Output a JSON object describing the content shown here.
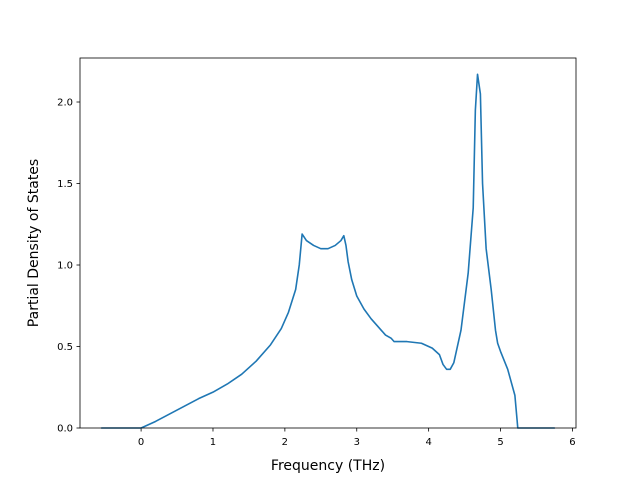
{
  "chart_data": {
    "type": "line",
    "title": "",
    "xlabel": "Frequency (THz)",
    "ylabel": "Partial Density of States",
    "xlim": [
      -0.85,
      6.05
    ],
    "ylim": [
      0.0,
      2.27
    ],
    "x_ticks": [
      0,
      1,
      2,
      3,
      4,
      5,
      6
    ],
    "x_tick_labels": [
      "0",
      "1",
      "2",
      "3",
      "4",
      "5",
      "6"
    ],
    "y_ticks": [
      0.0,
      0.5,
      1.0,
      1.5,
      2.0
    ],
    "y_tick_labels": [
      "0.0",
      "0.5",
      "1.0",
      "1.5",
      "2.0"
    ],
    "grid": false,
    "color": "#1f77b4",
    "series": [
      {
        "x": [
          -0.55,
          0.0,
          0.05,
          0.2,
          0.5,
          0.8,
          1.0,
          1.2,
          1.4,
          1.6,
          1.8,
          1.95,
          2.05,
          2.15,
          2.2,
          2.24,
          2.3,
          2.4,
          2.5,
          2.6,
          2.7,
          2.78,
          2.82,
          2.85,
          2.88,
          2.93,
          3.0,
          3.1,
          3.2,
          3.3,
          3.4,
          3.48,
          3.52,
          3.7,
          3.9,
          4.05,
          4.15,
          4.2,
          4.25,
          4.3,
          4.35,
          4.45,
          4.55,
          4.62,
          4.65,
          4.68,
          4.72,
          4.75,
          4.8,
          4.87,
          4.93,
          4.96,
          5.0,
          5.1,
          5.2,
          5.23,
          5.24,
          5.75
        ],
        "y": [
          0.0,
          0.0,
          0.01,
          0.04,
          0.11,
          0.18,
          0.22,
          0.27,
          0.33,
          0.41,
          0.51,
          0.61,
          0.71,
          0.85,
          1.0,
          1.19,
          1.15,
          1.12,
          1.1,
          1.1,
          1.12,
          1.15,
          1.18,
          1.12,
          1.02,
          0.91,
          0.81,
          0.73,
          0.67,
          0.62,
          0.57,
          0.55,
          0.53,
          0.53,
          0.52,
          0.49,
          0.45,
          0.39,
          0.36,
          0.36,
          0.4,
          0.6,
          0.95,
          1.35,
          1.95,
          2.17,
          2.05,
          1.5,
          1.1,
          0.85,
          0.6,
          0.52,
          0.47,
          0.36,
          0.2,
          0.05,
          0.0,
          0.0
        ]
      }
    ]
  }
}
